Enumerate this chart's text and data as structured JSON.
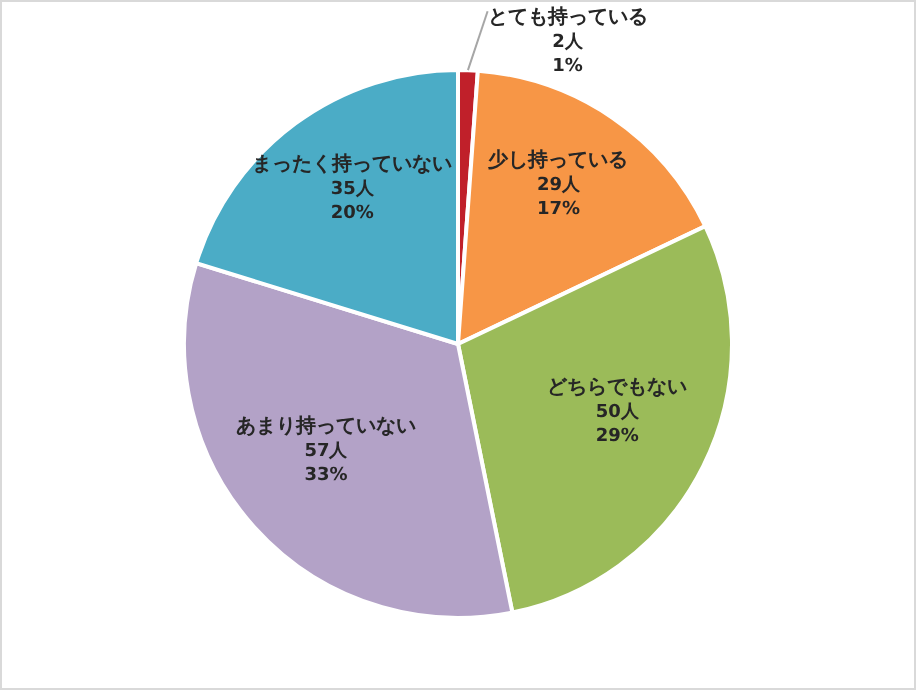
{
  "chart_data": {
    "type": "pie",
    "categories": [
      "とても持っている",
      "少し持っている",
      "どちらでもない",
      "あまり持っていない",
      "まったく持っていない"
    ],
    "values": [
      2,
      29,
      50,
      57,
      35
    ],
    "value_labels": [
      "2人\n1%",
      "29人\n17%",
      "50人\n29%",
      "57人\n33%",
      "35人\n20%"
    ],
    "colors": [
      "#c0202a",
      "#f79646",
      "#9bbb59",
      "#b3a2c7",
      "#4bacc6"
    ],
    "legend": false
  }
}
